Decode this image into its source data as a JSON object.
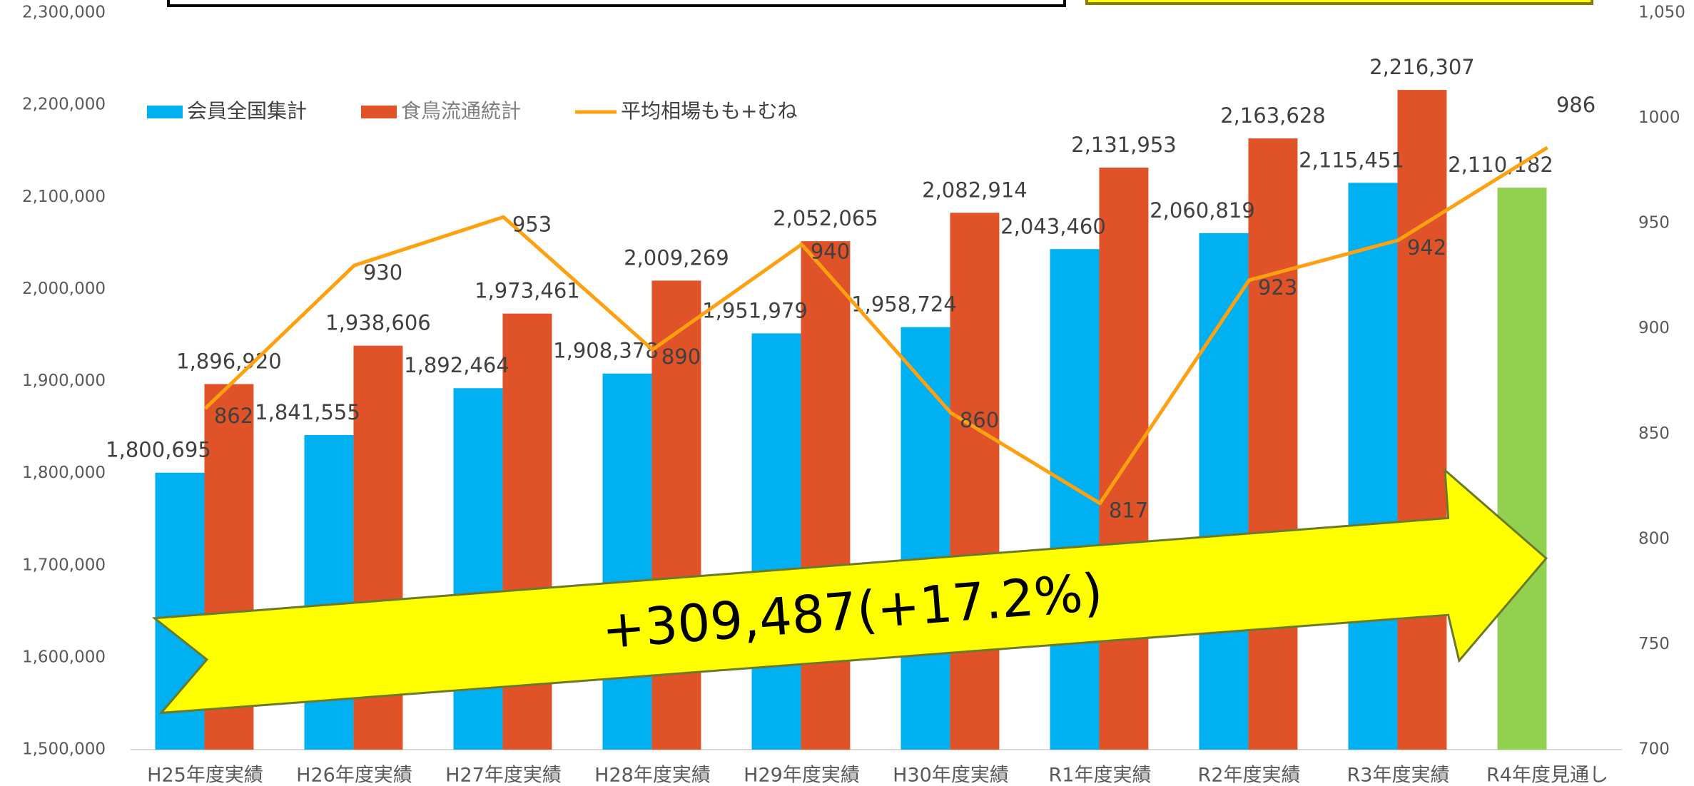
{
  "chart_data": {
    "type": "bar_line",
    "categories": [
      "H25年度実績",
      "H26年度実績",
      "H27年度実績",
      "H28年度実績",
      "H29年度実績",
      "H30年度実績",
      "R1年度実績",
      "R2年度実績",
      "R3年度実績",
      "R4年度見通し"
    ],
    "series": [
      {
        "name": "会員全国集計",
        "color": "#00b0f0",
        "kind": "bar",
        "colors": [
          "#00b0f0",
          "#00b0f0",
          "#00b0f0",
          "#00b0f0",
          "#00b0f0",
          "#00b0f0",
          "#00b0f0",
          "#00b0f0",
          "#00b0f0",
          "#92d050"
        ],
        "values": [
          1800695,
          1841555,
          1892464,
          1908378,
          1951979,
          1958724,
          2043460,
          2060819,
          2115451,
          2110182
        ],
        "value_labels": [
          "1,800,695",
          "1,841,555",
          "1,892,464",
          "1,908,378",
          "1,951,979",
          "1,958,724",
          "2,043,460",
          "2,060,819",
          "2,115,451",
          "2,110,182"
        ]
      },
      {
        "name": "食鳥流通統計",
        "color": "#e05328",
        "kind": "bar",
        "values": [
          1896920,
          1938606,
          1973461,
          2009269,
          2052065,
          2082914,
          2131953,
          2163628,
          2216307,
          null
        ],
        "value_labels": [
          "1,896,920",
          "1,938,606",
          "1,973,461",
          "2,009,269",
          "2,052,065",
          "2,082,914",
          "2,131,953",
          "2,163,628",
          "2,216,307",
          null
        ]
      },
      {
        "name": "平均相場もも+むね",
        "color": "#ffa010",
        "kind": "line",
        "axis": "y2",
        "values": [
          862,
          930,
          953,
          890,
          940,
          860,
          817,
          923,
          942,
          986
        ]
      }
    ],
    "ylim": [
      1500000,
      2300000
    ],
    "yticks": [
      {
        "value": 1500000,
        "label": "1,500,000"
      },
      {
        "value": 1600000,
        "label": "1,600,000"
      },
      {
        "value": 1700000,
        "label": "1,700,000"
      },
      {
        "value": 1800000,
        "label": "1,800,000"
      },
      {
        "value": 1900000,
        "label": "1,900,000"
      },
      {
        "value": 2000000,
        "label": "2,000,000"
      },
      {
        "value": 2100000,
        "label": "2,100,000"
      },
      {
        "value": 2200000,
        "label": "2,200,000"
      },
      {
        "value": 2300000,
        "label": "2,300,000"
      }
    ],
    "y2lim": [
      700,
      1050
    ],
    "y2ticks": [
      700,
      750,
      800,
      850,
      900,
      950,
      1000,
      {
        "value": 1050,
        "label": "1,050"
      }
    ],
    "annotations": [
      "+309,487(+17.2%)"
    ],
    "legend": "top-left"
  }
}
